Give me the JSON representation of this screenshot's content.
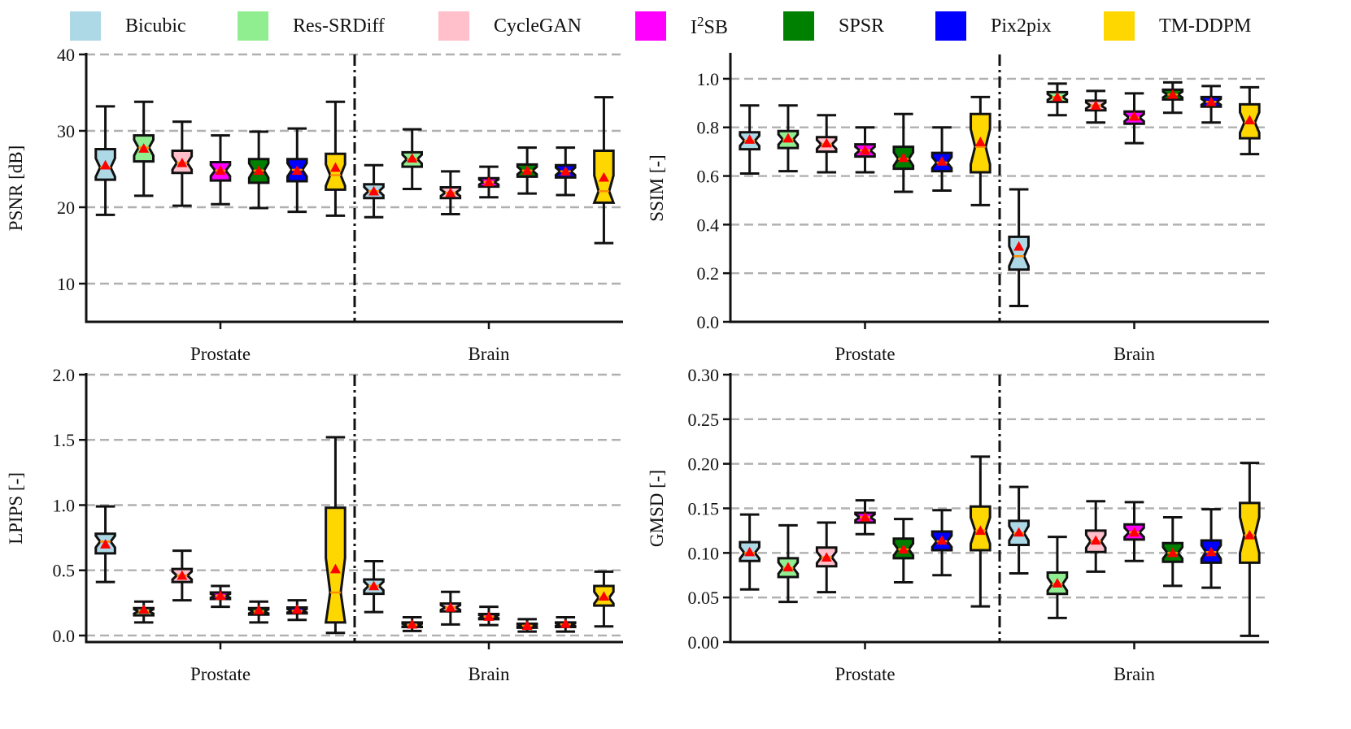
{
  "colors": {
    "Bicubic": "#add8e6",
    "Res-SRDiff": "#90ee90",
    "CycleGAN": "#ffc0cb",
    "I2SB": "#ff00ff",
    "SPSR": "#008000",
    "Pix2pix": "#0000ff",
    "TM-DDPM": "#ffd700",
    "median": "#ff8c00",
    "mean_marker": "#ff0000",
    "grid": "#b0b0b0"
  },
  "legend": [
    {
      "name": "Bicubic",
      "label": "Bicubic"
    },
    {
      "name": "Res-SRDiff",
      "label": "Res-SRDiff"
    },
    {
      "name": "CycleGAN",
      "label": "CycleGAN"
    },
    {
      "name": "I2SB",
      "label_base": "I",
      "label_sup": "2",
      "label_rest": "SB"
    },
    {
      "name": "SPSR",
      "label": "SPSR"
    },
    {
      "name": "Pix2pix",
      "label": "Pix2pix"
    },
    {
      "name": "TM-DDPM",
      "label": "TM-DDPM"
    }
  ],
  "chart_data": [
    {
      "type": "boxplot",
      "ylabel": "PSNR [dB]",
      "ylim": [
        5,
        40
      ],
      "yticks": [
        10,
        20,
        30,
        40
      ],
      "ytick_labels": [
        "10",
        "20",
        "30",
        "40"
      ],
      "grid": true,
      "groups": [
        "Prostate",
        "Brain"
      ],
      "series": [
        {
          "name": "Bicubic",
          "Prostate": {
            "min": 19,
            "q1": 23.6,
            "median": 25.2,
            "q3": 27.6,
            "max": 33.2,
            "mean": 25.5
          },
          "Brain": {
            "min": 18.7,
            "q1": 21.2,
            "median": 22.1,
            "q3": 23,
            "max": 25.5,
            "mean": 22.1
          }
        },
        {
          "name": "Res-SRDiff",
          "Prostate": {
            "min": 21.5,
            "q1": 26,
            "median": 27.8,
            "q3": 29.4,
            "max": 33.8,
            "mean": 27.7
          },
          "Brain": {
            "min": 22.4,
            "q1": 25.3,
            "median": 26.3,
            "q3": 27.2,
            "max": 30.2,
            "mean": 26.4
          }
        },
        {
          "name": "CycleGAN",
          "Prostate": {
            "min": 20.2,
            "q1": 24.5,
            "median": 25.8,
            "q3": 27.4,
            "max": 31.2,
            "mean": 25.8
          },
          "Brain": {
            "min": 19.1,
            "q1": 21.2,
            "median": 21.9,
            "q3": 22.6,
            "max": 24.7,
            "mean": 21.9
          }
        },
        {
          "name": "I2SB",
          "Prostate": {
            "min": 20.4,
            "q1": 23.5,
            "median": 24.8,
            "q3": 25.9,
            "max": 29.4,
            "mean": 24.8
          },
          "Brain": {
            "min": 21.3,
            "q1": 22.7,
            "median": 23.3,
            "q3": 23.8,
            "max": 25.3,
            "mean": 23.3
          }
        },
        {
          "name": "SPSR",
          "Prostate": {
            "min": 19.9,
            "q1": 23.2,
            "median": 24.8,
            "q3": 26.3,
            "max": 29.9,
            "mean": 24.8
          },
          "Brain": {
            "min": 21.8,
            "q1": 24,
            "median": 24.8,
            "q3": 25.6,
            "max": 27.8,
            "mean": 24.8
          }
        },
        {
          "name": "Pix2pix",
          "Prostate": {
            "min": 19.4,
            "q1": 23.4,
            "median": 24.9,
            "q3": 26.3,
            "max": 30.3,
            "mean": 24.8
          },
          "Brain": {
            "min": 21.6,
            "q1": 23.9,
            "median": 24.7,
            "q3": 25.5,
            "max": 27.8,
            "mean": 24.7
          }
        },
        {
          "name": "TM-DDPM",
          "Prostate": {
            "min": 18.9,
            "q1": 22.3,
            "median": 24.2,
            "q3": 27,
            "max": 33.8,
            "mean": 25.2
          },
          "Brain": {
            "min": 15.3,
            "q1": 20.6,
            "median": 22.1,
            "q3": 27.4,
            "max": 34.4,
            "mean": 23.9
          }
        }
      ]
    },
    {
      "type": "boxplot",
      "ylabel": "SSIM [-]",
      "ylim": [
        0,
        1.1
      ],
      "yticks": [
        0,
        0.2,
        0.4,
        0.6,
        0.8,
        1.0
      ],
      "ytick_labels": [
        "0.0",
        "0.2",
        "0.4",
        "0.6",
        "0.8",
        "1.0"
      ],
      "grid": true,
      "groups": [
        "Prostate",
        "Brain"
      ],
      "series": [
        {
          "name": "Bicubic",
          "Prostate": {
            "min": 0.61,
            "q1": 0.71,
            "median": 0.745,
            "q3": 0.78,
            "max": 0.89,
            "mean": 0.75
          },
          "Brain": {
            "min": 0.065,
            "q1": 0.215,
            "median": 0.27,
            "q3": 0.35,
            "max": 0.545,
            "mean": 0.31
          }
        },
        {
          "name": "Res-SRDiff",
          "Prostate": {
            "min": 0.62,
            "q1": 0.715,
            "median": 0.75,
            "q3": 0.785,
            "max": 0.89,
            "mean": 0.755
          },
          "Brain": {
            "min": 0.85,
            "q1": 0.905,
            "median": 0.925,
            "q3": 0.945,
            "max": 0.98,
            "mean": 0.925
          }
        },
        {
          "name": "CycleGAN",
          "Prostate": {
            "min": 0.615,
            "q1": 0.7,
            "median": 0.73,
            "q3": 0.76,
            "max": 0.85,
            "mean": 0.735
          },
          "Brain": {
            "min": 0.82,
            "q1": 0.87,
            "median": 0.89,
            "q3": 0.91,
            "max": 0.95,
            "mean": 0.89
          }
        },
        {
          "name": "I2SB",
          "Prostate": {
            "min": 0.615,
            "q1": 0.68,
            "median": 0.705,
            "q3": 0.73,
            "max": 0.8,
            "mean": 0.705
          },
          "Brain": {
            "min": 0.735,
            "q1": 0.815,
            "median": 0.84,
            "q3": 0.865,
            "max": 0.94,
            "mean": 0.845
          }
        },
        {
          "name": "SPSR",
          "Prostate": {
            "min": 0.535,
            "q1": 0.63,
            "median": 0.67,
            "q3": 0.72,
            "max": 0.855,
            "mean": 0.675
          },
          "Brain": {
            "min": 0.86,
            "q1": 0.915,
            "median": 0.935,
            "q3": 0.955,
            "max": 0.985,
            "mean": 0.935
          }
        },
        {
          "name": "Pix2pix",
          "Prostate": {
            "min": 0.54,
            "q1": 0.62,
            "median": 0.655,
            "q3": 0.695,
            "max": 0.8,
            "mean": 0.66
          },
          "Brain": {
            "min": 0.82,
            "q1": 0.885,
            "median": 0.905,
            "q3": 0.925,
            "max": 0.97,
            "mean": 0.905
          }
        },
        {
          "name": "TM-DDPM",
          "Prostate": {
            "min": 0.48,
            "q1": 0.615,
            "median": 0.72,
            "q3": 0.855,
            "max": 0.925,
            "mean": 0.74
          },
          "Brain": {
            "min": 0.69,
            "q1": 0.755,
            "median": 0.82,
            "q3": 0.895,
            "max": 0.965,
            "mean": 0.83
          }
        }
      ]
    },
    {
      "type": "boxplot",
      "ylabel": "LPIPS [-]",
      "ylim": [
        -0.05,
        2.0
      ],
      "yticks": [
        0,
        0.5,
        1.0,
        1.5,
        2.0
      ],
      "ytick_labels": [
        "0.0",
        "0.5",
        "1.0",
        "1.5",
        "2.0"
      ],
      "grid": true,
      "groups": [
        "Prostate",
        "Brain"
      ],
      "series": [
        {
          "name": "Bicubic",
          "Prostate": {
            "min": 0.41,
            "q1": 0.63,
            "median": 0.72,
            "q3": 0.78,
            "max": 0.99,
            "mean": 0.7
          },
          "Brain": {
            "min": 0.18,
            "q1": 0.32,
            "median": 0.38,
            "q3": 0.43,
            "max": 0.57,
            "mean": 0.38
          }
        },
        {
          "name": "Res-SRDiff",
          "Prostate": {
            "min": 0.1,
            "q1": 0.155,
            "median": 0.185,
            "q3": 0.21,
            "max": 0.26,
            "mean": 0.2
          },
          "Brain": {
            "min": 0.035,
            "q1": 0.065,
            "median": 0.08,
            "q3": 0.1,
            "max": 0.14,
            "mean": 0.085
          }
        },
        {
          "name": "CycleGAN",
          "Prostate": {
            "min": 0.27,
            "q1": 0.41,
            "median": 0.46,
            "q3": 0.51,
            "max": 0.65,
            "mean": 0.46
          },
          "Brain": {
            "min": 0.085,
            "q1": 0.185,
            "median": 0.215,
            "q3": 0.245,
            "max": 0.335,
            "mean": 0.215
          }
        },
        {
          "name": "I2SB",
          "Prostate": {
            "min": 0.22,
            "q1": 0.28,
            "median": 0.305,
            "q3": 0.33,
            "max": 0.38,
            "mean": 0.305
          },
          "Brain": {
            "min": 0.08,
            "q1": 0.125,
            "median": 0.145,
            "q3": 0.165,
            "max": 0.22,
            "mean": 0.145
          }
        },
        {
          "name": "SPSR",
          "Prostate": {
            "min": 0.1,
            "q1": 0.16,
            "median": 0.185,
            "q3": 0.21,
            "max": 0.26,
            "mean": 0.195
          },
          "Brain": {
            "min": 0.03,
            "q1": 0.06,
            "median": 0.075,
            "q3": 0.09,
            "max": 0.125,
            "mean": 0.075
          }
        },
        {
          "name": "Pix2pix",
          "Prostate": {
            "min": 0.12,
            "q1": 0.17,
            "median": 0.19,
            "q3": 0.215,
            "max": 0.27,
            "mean": 0.2
          },
          "Brain": {
            "min": 0.03,
            "q1": 0.065,
            "median": 0.085,
            "q3": 0.1,
            "max": 0.14,
            "mean": 0.09
          }
        },
        {
          "name": "TM-DDPM",
          "Prostate": {
            "min": 0.02,
            "q1": 0.1,
            "median": 0.33,
            "q3": 0.98,
            "max": 1.52,
            "mean": 0.51
          },
          "Brain": {
            "min": 0.07,
            "q1": 0.23,
            "median": 0.29,
            "q3": 0.38,
            "max": 0.49,
            "mean": 0.3
          }
        }
      ]
    },
    {
      "type": "boxplot",
      "ylabel": "GMSD [-]",
      "ylim": [
        0,
        0.3
      ],
      "yticks": [
        0,
        0.05,
        0.1,
        0.15,
        0.2,
        0.25,
        0.3
      ],
      "ytick_labels": [
        "0.00",
        "0.05",
        "0.10",
        "0.15",
        "0.20",
        "0.25",
        "0.30"
      ],
      "grid": true,
      "groups": [
        "Prostate",
        "Brain"
      ],
      "series": [
        {
          "name": "Bicubic",
          "Prostate": {
            "min": 0.059,
            "q1": 0.091,
            "median": 0.1,
            "q3": 0.112,
            "max": 0.143,
            "mean": 0.101
          },
          "Brain": {
            "min": 0.077,
            "q1": 0.109,
            "median": 0.122,
            "q3": 0.136,
            "max": 0.174,
            "mean": 0.123
          }
        },
        {
          "name": "Res-SRDiff",
          "Prostate": {
            "min": 0.045,
            "q1": 0.073,
            "median": 0.083,
            "q3": 0.094,
            "max": 0.131,
            "mean": 0.084
          },
          "Brain": {
            "min": 0.027,
            "q1": 0.054,
            "median": 0.065,
            "q3": 0.078,
            "max": 0.118,
            "mean": 0.066
          }
        },
        {
          "name": "CycleGAN",
          "Prostate": {
            "min": 0.056,
            "q1": 0.085,
            "median": 0.095,
            "q3": 0.106,
            "max": 0.134,
            "mean": 0.095
          },
          "Brain": {
            "min": 0.079,
            "q1": 0.101,
            "median": 0.113,
            "q3": 0.125,
            "max": 0.158,
            "mean": 0.114
          }
        },
        {
          "name": "I2SB",
          "Prostate": {
            "min": 0.121,
            "q1": 0.134,
            "median": 0.14,
            "q3": 0.145,
            "max": 0.159,
            "mean": 0.14
          },
          "Brain": {
            "min": 0.091,
            "q1": 0.115,
            "median": 0.123,
            "q3": 0.132,
            "max": 0.157,
            "mean": 0.123
          }
        },
        {
          "name": "SPSR",
          "Prostate": {
            "min": 0.067,
            "q1": 0.094,
            "median": 0.104,
            "q3": 0.116,
            "max": 0.138,
            "mean": 0.104
          },
          "Brain": {
            "min": 0.063,
            "q1": 0.09,
            "median": 0.1,
            "q3": 0.111,
            "max": 0.14,
            "mean": 0.1
          }
        },
        {
          "name": "Pix2pix",
          "Prostate": {
            "min": 0.075,
            "q1": 0.103,
            "median": 0.113,
            "q3": 0.124,
            "max": 0.148,
            "mean": 0.114
          },
          "Brain": {
            "min": 0.061,
            "q1": 0.089,
            "median": 0.101,
            "q3": 0.114,
            "max": 0.149,
            "mean": 0.101
          }
        },
        {
          "name": "TM-DDPM",
          "Prostate": {
            "min": 0.04,
            "q1": 0.103,
            "median": 0.125,
            "q3": 0.152,
            "max": 0.208,
            "mean": 0.125
          },
          "Brain": {
            "min": 0.007,
            "q1": 0.089,
            "median": 0.12,
            "q3": 0.156,
            "max": 0.201,
            "mean": 0.12
          }
        }
      ]
    }
  ]
}
